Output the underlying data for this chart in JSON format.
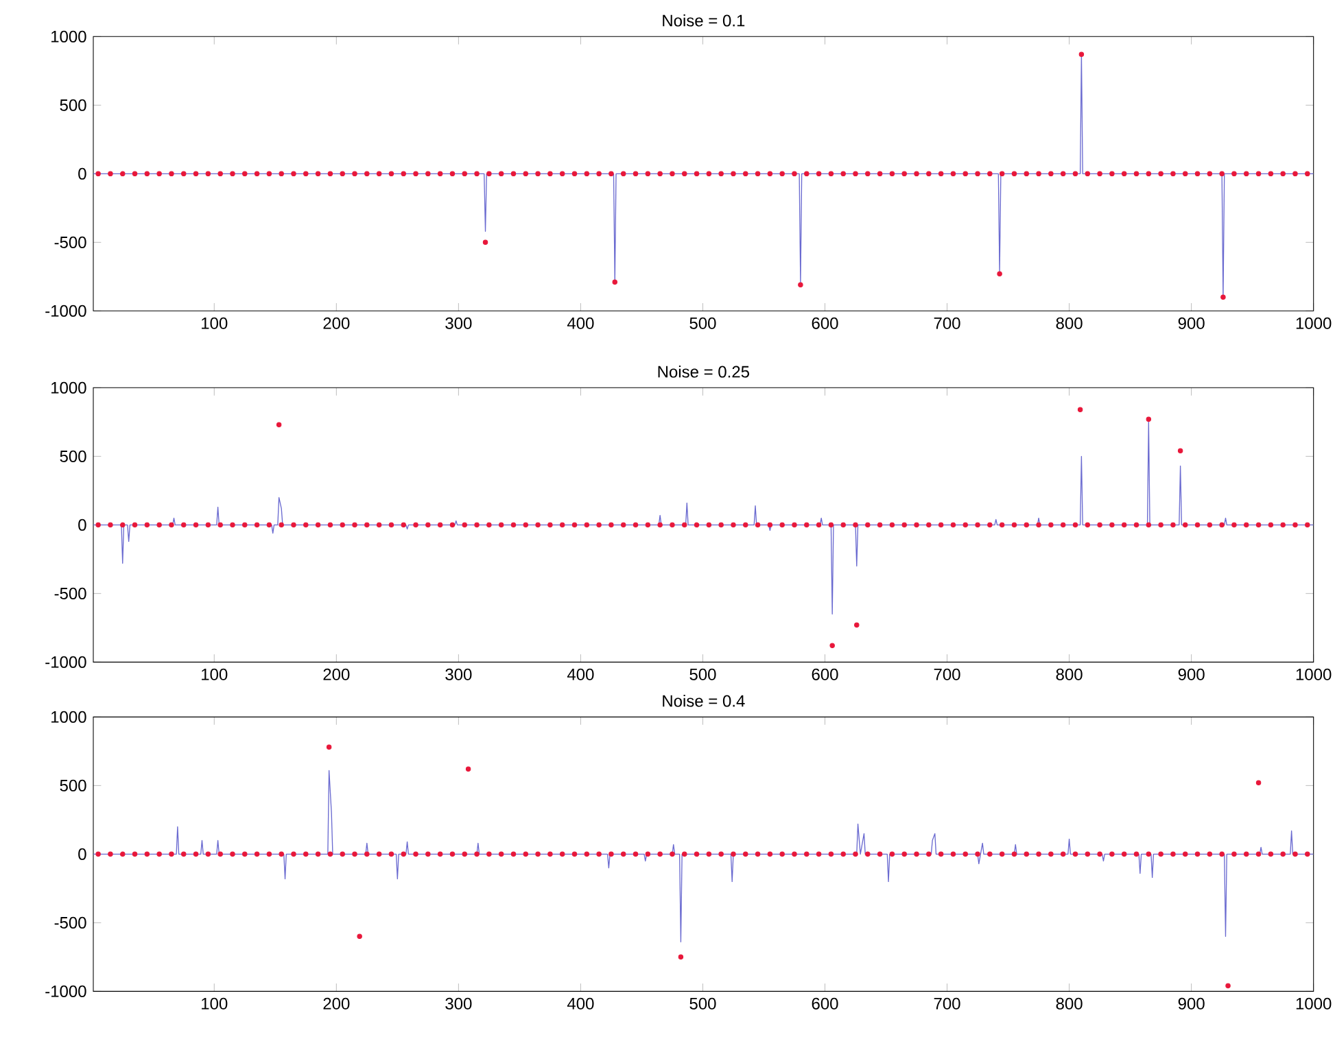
{
  "chart_data": [
    {
      "type": "line",
      "title": "Noise = 0.1",
      "xlim": [
        1,
        1000
      ],
      "ylim": [
        -1000,
        1000
      ],
      "xticks": [
        100,
        200,
        300,
        400,
        500,
        600,
        700,
        800,
        900,
        1000
      ],
      "yticks": [
        -1000,
        -500,
        0,
        500,
        1000
      ],
      "series": [
        {
          "color": "#6a6ad0",
          "x": [
            1,
            321,
            322,
            323,
            427,
            428,
            429,
            579,
            580,
            581,
            742,
            743,
            744,
            809,
            810,
            811,
            925,
            926,
            927,
            1000
          ],
          "values": [
            0,
            0,
            -420,
            0,
            0,
            -790,
            0,
            0,
            -800,
            0,
            0,
            -720,
            0,
            0,
            870,
            0,
            0,
            -900,
            0,
            0
          ]
        },
        {
          "type": "scatter",
          "marker": "circle",
          "color": "#e8173a",
          "x": [
            322,
            428,
            580,
            743,
            810,
            926,
            5,
            15,
            25,
            35,
            45,
            55,
            65,
            75,
            85,
            95,
            105,
            115,
            125,
            135,
            145,
            155,
            165,
            175,
            185,
            195,
            205,
            215,
            225,
            235,
            245,
            255,
            265,
            275,
            285,
            295,
            305,
            315,
            325,
            335,
            345,
            355,
            365,
            375,
            385,
            395,
            405,
            415,
            425,
            435,
            445,
            455,
            465,
            475,
            485,
            495,
            505,
            515,
            525,
            535,
            545,
            555,
            565,
            575,
            585,
            595,
            605,
            615,
            625,
            635,
            645,
            655,
            665,
            675,
            685,
            695,
            705,
            715,
            725,
            735,
            745,
            755,
            765,
            775,
            785,
            795,
            805,
            815,
            825,
            835,
            845,
            855,
            865,
            875,
            885,
            895,
            905,
            915,
            925,
            935,
            945,
            955,
            965,
            975,
            985,
            995
          ],
          "values": [
            -500,
            -790,
            -810,
            -730,
            870,
            -900,
            0,
            0,
            0,
            0,
            0,
            0,
            0,
            0,
            0,
            0,
            0,
            0,
            0,
            0,
            0,
            0,
            0,
            0,
            0,
            0,
            0,
            0,
            0,
            0,
            0,
            0,
            0,
            0,
            0,
            0,
            0,
            0,
            0,
            0,
            0,
            0,
            0,
            0,
            0,
            0,
            0,
            0,
            0,
            0,
            0,
            0,
            0,
            0,
            0,
            0,
            0,
            0,
            0,
            0,
            0,
            0,
            0,
            0,
            0,
            0,
            0,
            0,
            0,
            0,
            0,
            0,
            0,
            0,
            0,
            0,
            0,
            0,
            0,
            0,
            0,
            0,
            0,
            0,
            0,
            0,
            0,
            0,
            0,
            0,
            0,
            0,
            0,
            0,
            0,
            0,
            0,
            0,
            0,
            0,
            0,
            0,
            0,
            0,
            0,
            0
          ]
        }
      ]
    },
    {
      "type": "line",
      "title": "Noise = 0.25",
      "xlim": [
        1,
        1000
      ],
      "ylim": [
        -1000,
        1000
      ],
      "xticks": [
        100,
        200,
        300,
        400,
        500,
        600,
        700,
        800,
        900,
        1000
      ],
      "yticks": [
        -1000,
        -500,
        0,
        500,
        1000
      ],
      "series": [
        {
          "color": "#6a6ad0",
          "x": [
            1,
            24,
            25,
            26,
            29,
            30,
            31,
            66,
            67,
            68,
            102,
            103,
            104,
            147,
            148,
            149,
            152,
            153,
            155,
            156,
            157,
            257,
            258,
            259,
            297,
            298,
            299,
            464,
            465,
            466,
            486,
            487,
            488,
            542,
            543,
            544,
            554,
            555,
            556,
            596,
            597,
            598,
            605,
            606,
            607,
            625,
            626,
            627,
            739,
            740,
            741,
            774,
            775,
            776,
            809,
            810,
            811,
            864,
            865,
            866,
            890,
            891,
            892,
            927,
            928,
            929,
            1000
          ],
          "values": [
            0,
            0,
            -280,
            0,
            0,
            -120,
            0,
            0,
            50,
            0,
            0,
            130,
            0,
            0,
            -60,
            0,
            0,
            200,
            120,
            0,
            0,
            0,
            -30,
            0,
            0,
            30,
            0,
            0,
            70,
            0,
            0,
            160,
            0,
            0,
            140,
            0,
            0,
            -40,
            0,
            0,
            50,
            0,
            0,
            -650,
            0,
            0,
            -300,
            0,
            0,
            40,
            0,
            0,
            50,
            0,
            0,
            500,
            0,
            0,
            750,
            0,
            0,
            430,
            0,
            0,
            50,
            0,
            0
          ]
        },
        {
          "type": "scatter",
          "marker": "circle",
          "color": "#e8173a",
          "x": [
            153,
            809,
            865,
            891,
            606,
            626,
            5,
            15,
            25,
            35,
            45,
            55,
            65,
            75,
            85,
            95,
            105,
            115,
            125,
            135,
            145,
            155,
            165,
            175,
            185,
            195,
            205,
            215,
            225,
            235,
            245,
            255,
            265,
            275,
            285,
            295,
            305,
            315,
            325,
            335,
            345,
            355,
            365,
            375,
            385,
            395,
            405,
            415,
            425,
            435,
            445,
            455,
            465,
            475,
            485,
            495,
            505,
            515,
            525,
            535,
            545,
            555,
            565,
            575,
            585,
            595,
            605,
            615,
            625,
            635,
            645,
            655,
            665,
            675,
            685,
            695,
            705,
            715,
            725,
            735,
            745,
            755,
            765,
            775,
            785,
            795,
            805,
            815,
            825,
            835,
            845,
            855,
            865,
            875,
            885,
            895,
            905,
            915,
            925,
            935,
            945,
            955,
            965,
            975,
            985,
            995
          ],
          "values": [
            730,
            840,
            770,
            540,
            -880,
            -730,
            0,
            0,
            0,
            0,
            0,
            0,
            0,
            0,
            0,
            0,
            0,
            0,
            0,
            0,
            0,
            0,
            0,
            0,
            0,
            0,
            0,
            0,
            0,
            0,
            0,
            0,
            0,
            0,
            0,
            0,
            0,
            0,
            0,
            0,
            0,
            0,
            0,
            0,
            0,
            0,
            0,
            0,
            0,
            0,
            0,
            0,
            0,
            0,
            0,
            0,
            0,
            0,
            0,
            0,
            0,
            0,
            0,
            0,
            0,
            0,
            0,
            0,
            0,
            0,
            0,
            0,
            0,
            0,
            0,
            0,
            0,
            0,
            0,
            0,
            0,
            0,
            0,
            0,
            0,
            0,
            0,
            0,
            0,
            0,
            0,
            0,
            0,
            0,
            0,
            0,
            0,
            0,
            0,
            0,
            0,
            0,
            0,
            0,
            0,
            0
          ]
        }
      ]
    },
    {
      "type": "line",
      "title": "Noise = 0.4",
      "xlim": [
        1,
        1000
      ],
      "ylim": [
        -1000,
        1000
      ],
      "xticks": [
        100,
        200,
        300,
        400,
        500,
        600,
        700,
        800,
        900,
        1000
      ],
      "yticks": [
        -1000,
        -500,
        0,
        500,
        1000
      ],
      "series": [
        {
          "color": "#6a6ad0",
          "x": [
            1,
            69,
            70,
            71,
            89,
            90,
            91,
            102,
            103,
            104,
            157,
            158,
            159,
            193,
            194,
            196,
            197,
            224,
            225,
            226,
            249,
            250,
            251,
            257,
            258,
            259,
            315,
            316,
            317,
            422,
            423,
            424,
            452,
            453,
            454,
            475,
            476,
            477,
            481,
            482,
            483,
            523,
            524,
            525,
            626,
            627,
            629,
            632,
            633,
            651,
            652,
            653,
            687,
            688,
            690,
            691,
            725,
            726,
            729,
            730,
            755,
            756,
            757,
            799,
            800,
            801,
            827,
            828,
            829,
            857,
            858,
            859,
            867,
            868,
            869,
            927,
            928,
            929,
            956,
            957,
            958,
            981,
            982,
            983,
            1000
          ],
          "values": [
            0,
            0,
            200,
            0,
            0,
            100,
            0,
            0,
            100,
            0,
            0,
            -180,
            0,
            0,
            610,
            300,
            0,
            0,
            80,
            0,
            0,
            -180,
            0,
            0,
            90,
            0,
            0,
            80,
            0,
            0,
            -100,
            0,
            0,
            -50,
            0,
            0,
            70,
            0,
            0,
            -640,
            0,
            0,
            -200,
            0,
            0,
            220,
            0,
            150,
            0,
            0,
            -200,
            0,
            0,
            100,
            150,
            0,
            0,
            -70,
            80,
            0,
            0,
            70,
            0,
            0,
            110,
            0,
            0,
            -50,
            0,
            0,
            -140,
            0,
            0,
            -170,
            0,
            0,
            -600,
            0,
            0,
            50,
            0,
            0,
            170,
            0,
            0
          ]
        },
        {
          "type": "scatter",
          "marker": "circle",
          "color": "#e8173a",
          "x": [
            194,
            219,
            308,
            482,
            930,
            955,
            5,
            15,
            25,
            35,
            45,
            55,
            65,
            75,
            85,
            95,
            105,
            115,
            125,
            135,
            145,
            155,
            165,
            175,
            185,
            195,
            205,
            215,
            225,
            235,
            245,
            255,
            265,
            275,
            285,
            295,
            305,
            315,
            325,
            335,
            345,
            355,
            365,
            375,
            385,
            395,
            405,
            415,
            425,
            435,
            445,
            455,
            465,
            475,
            485,
            495,
            505,
            515,
            525,
            535,
            545,
            555,
            565,
            575,
            585,
            595,
            605,
            615,
            625,
            635,
            645,
            655,
            665,
            675,
            685,
            695,
            705,
            715,
            725,
            735,
            745,
            755,
            765,
            775,
            785,
            795,
            805,
            815,
            825,
            835,
            845,
            855,
            865,
            875,
            885,
            895,
            905,
            915,
            925,
            935,
            945,
            955,
            965,
            975,
            985,
            995
          ],
          "values": [
            780,
            -600,
            620,
            -750,
            -960,
            520,
            0,
            0,
            0,
            0,
            0,
            0,
            0,
            0,
            0,
            0,
            0,
            0,
            0,
            0,
            0,
            0,
            0,
            0,
            0,
            0,
            0,
            0,
            0,
            0,
            0,
            0,
            0,
            0,
            0,
            0,
            0,
            0,
            0,
            0,
            0,
            0,
            0,
            0,
            0,
            0,
            0,
            0,
            0,
            0,
            0,
            0,
            0,
            0,
            0,
            0,
            0,
            0,
            0,
            0,
            0,
            0,
            0,
            0,
            0,
            0,
            0,
            0,
            0,
            0,
            0,
            0,
            0,
            0,
            0,
            0,
            0,
            0,
            0,
            0,
            0,
            0,
            0,
            0,
            0,
            0,
            0,
            0,
            0,
            0,
            0,
            0,
            0,
            0,
            0,
            0,
            0,
            0,
            0,
            0,
            0,
            0,
            0,
            0,
            0,
            0
          ]
        }
      ]
    }
  ]
}
